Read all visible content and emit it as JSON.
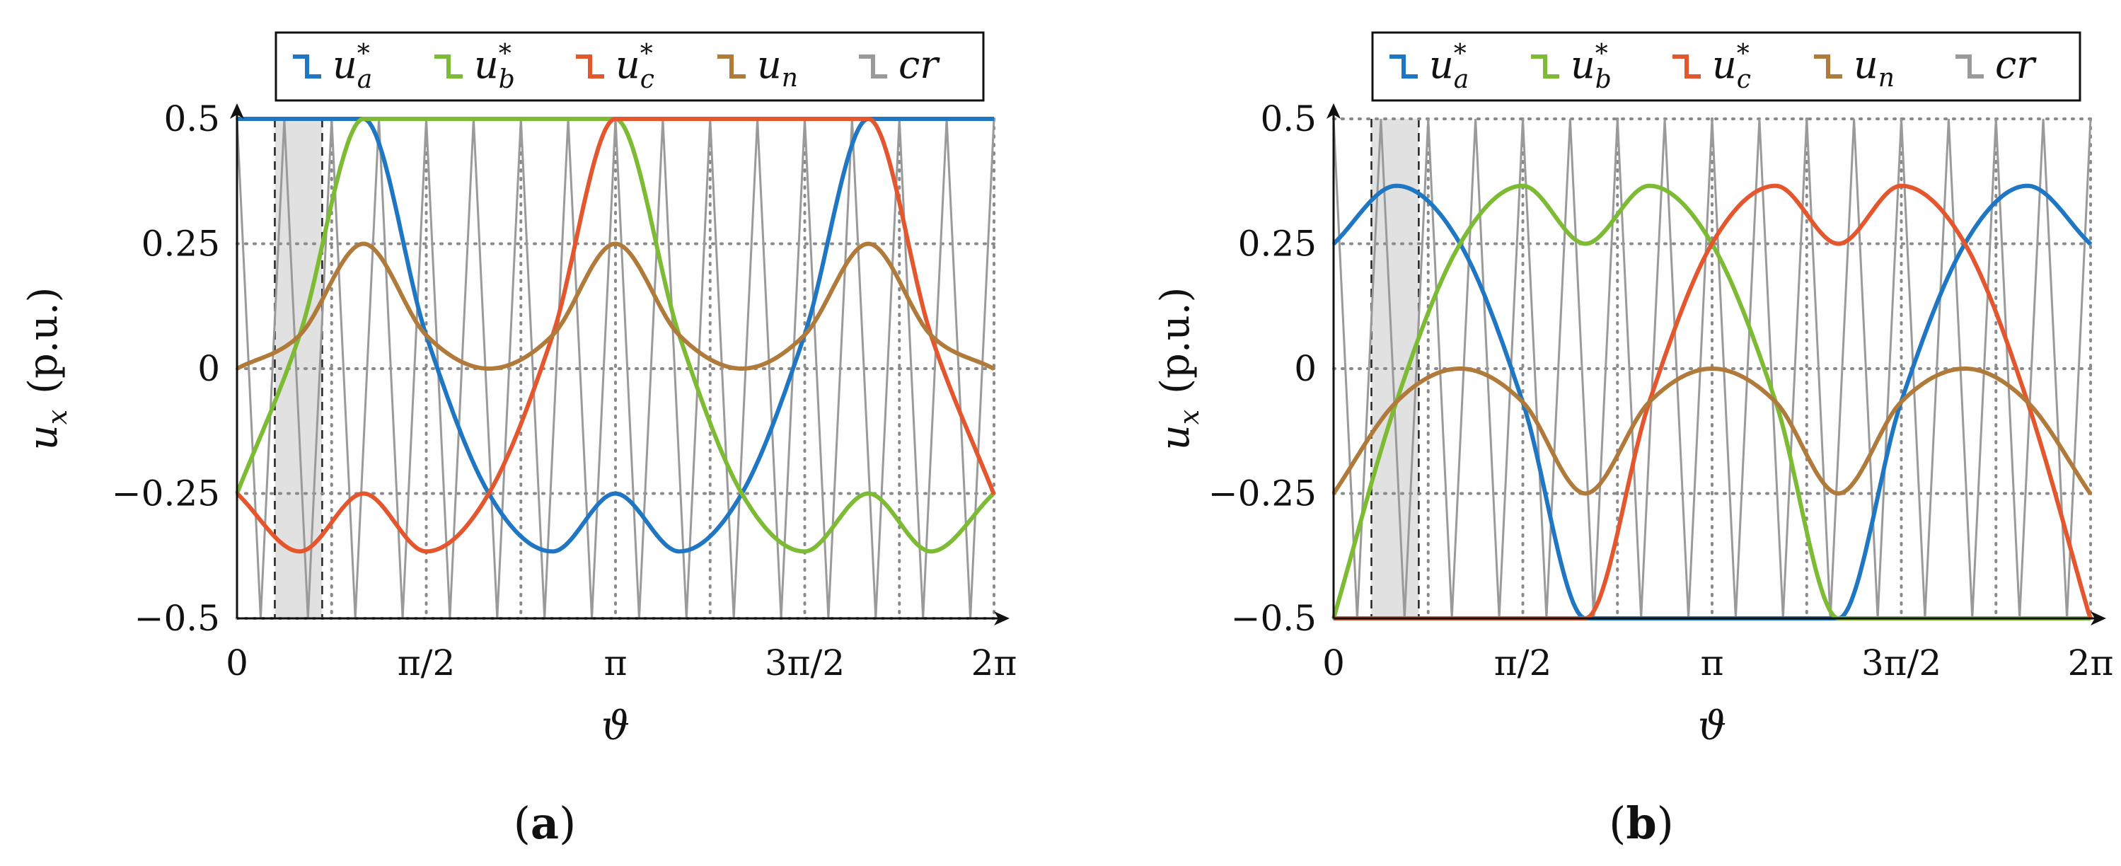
{
  "figure": {
    "legend": [
      {
        "name": "u_a*",
        "base": "u",
        "sub": "a",
        "sup": "*",
        "color": "#1f77c4"
      },
      {
        "name": "u_b*",
        "base": "u",
        "sub": "b",
        "sup": "*",
        "color": "#7dbb35"
      },
      {
        "name": "u_c*",
        "base": "u",
        "sub": "c",
        "sup": "*",
        "color": "#e4572e"
      },
      {
        "name": "u_n",
        "base": "u",
        "sub": "n",
        "sup": "",
        "color": "#b07a3b"
      },
      {
        "name": "cr",
        "base": "cr",
        "sub": "",
        "sup": "",
        "color": "#9a9a9a"
      }
    ],
    "ylabel": {
      "sym": "u",
      "sub": "x",
      "unit": "(p.u.)"
    },
    "xlabel": "ϑ",
    "y_ticks": [
      "0.5",
      "0.25",
      "0",
      "−0.25",
      "−0.5"
    ],
    "x_ticks": [
      "0",
      "π/2",
      "π",
      "3π/2",
      "2π"
    ],
    "captions": {
      "a": "a",
      "b": "b"
    }
  },
  "chart_data": [
    {
      "id": "a",
      "type": "line",
      "title": "(a)",
      "xlabel": "ϑ",
      "ylabel": "u_x (p.u.)",
      "xlim": [
        0,
        6.2832
      ],
      "ylim": [
        -0.5,
        0.5
      ],
      "x_tick_values": [
        0,
        1.5708,
        3.1416,
        4.7124,
        6.2832
      ],
      "y_tick_values": [
        -0.5,
        -0.25,
        0,
        0.25,
        0.5
      ],
      "grid": true,
      "carrier_periods": 16,
      "shaded_x": [
        0.314,
        0.707
      ],
      "legend_position": "top",
      "series": [
        {
          "name": "u_a*",
          "x": [
            0,
            0.52,
            1.05,
            1.57,
            2.09,
            2.62,
            3.14,
            3.67,
            4.19,
            4.71,
            5.24,
            5.76,
            6.28
          ],
          "values": [
            0.5,
            0.5,
            0.5,
            0.067,
            -0.25,
            -0.366,
            -0.25,
            -0.366,
            -0.25,
            0.067,
            0.5,
            0.5,
            0.5
          ]
        },
        {
          "name": "u_b*",
          "x": [
            0,
            0.52,
            1.05,
            1.57,
            2.09,
            2.62,
            3.14,
            3.67,
            4.19,
            4.71,
            5.24,
            5.76,
            6.28
          ],
          "values": [
            -0.25,
            0.067,
            0.5,
            0.5,
            0.5,
            0.5,
            0.5,
            0.067,
            -0.25,
            -0.366,
            -0.25,
            -0.366,
            -0.25
          ]
        },
        {
          "name": "u_c*",
          "x": [
            0,
            0.52,
            1.05,
            1.57,
            2.09,
            2.62,
            3.14,
            3.67,
            4.19,
            4.71,
            5.24,
            5.76,
            6.28
          ],
          "values": [
            -0.25,
            -0.366,
            -0.25,
            -0.366,
            -0.25,
            0.067,
            0.5,
            0.5,
            0.5,
            0.5,
            0.5,
            0.067,
            -0.25
          ]
        },
        {
          "name": "u_n",
          "x": [
            0,
            0.52,
            1.05,
            1.57,
            2.09,
            2.62,
            3.14,
            3.67,
            4.19,
            4.71,
            5.24,
            5.76,
            6.28
          ],
          "values": [
            0,
            0.067,
            0.25,
            0.067,
            0,
            0.067,
            0.25,
            0.067,
            0,
            0.067,
            0.25,
            0.067,
            0
          ]
        }
      ]
    },
    {
      "id": "b",
      "type": "line",
      "title": "(b)",
      "xlabel": "ϑ",
      "ylabel": "u_x (p.u.)",
      "xlim": [
        0,
        6.2832
      ],
      "ylim": [
        -0.5,
        0.5
      ],
      "x_tick_values": [
        0,
        1.5708,
        3.1416,
        4.7124,
        6.2832
      ],
      "y_tick_values": [
        -0.5,
        -0.25,
        0,
        0.25,
        0.5
      ],
      "grid": true,
      "carrier_periods": 16,
      "shaded_x": [
        0.314,
        0.707
      ],
      "legend_position": "top",
      "series": [
        {
          "name": "u_a*",
          "x": [
            0,
            0.52,
            1.05,
            1.57,
            2.09,
            2.62,
            3.14,
            3.67,
            4.19,
            4.71,
            5.24,
            5.76,
            6.28
          ],
          "values": [
            0.25,
            0.366,
            0.25,
            -0.067,
            -0.5,
            -0.5,
            -0.5,
            -0.5,
            -0.5,
            -0.067,
            0.25,
            0.366,
            0.25
          ]
        },
        {
          "name": "u_b*",
          "x": [
            0,
            0.52,
            1.05,
            1.57,
            2.09,
            2.62,
            3.14,
            3.67,
            4.19,
            4.71,
            5.24,
            5.76,
            6.28
          ],
          "values": [
            -0.5,
            -0.067,
            0.25,
            0.366,
            0.25,
            0.366,
            0.25,
            -0.067,
            -0.5,
            -0.5,
            -0.5,
            -0.5,
            -0.5
          ]
        },
        {
          "name": "u_c*",
          "x": [
            0,
            0.52,
            1.05,
            1.57,
            2.09,
            2.62,
            3.14,
            3.67,
            4.19,
            4.71,
            5.24,
            5.76,
            6.28
          ],
          "values": [
            -0.5,
            -0.5,
            -0.5,
            -0.5,
            -0.5,
            -0.067,
            0.25,
            0.366,
            0.25,
            0.366,
            0.25,
            -0.067,
            -0.5
          ]
        },
        {
          "name": "u_n",
          "x": [
            0,
            0.52,
            1.05,
            1.57,
            2.09,
            2.62,
            3.14,
            3.67,
            4.19,
            4.71,
            5.24,
            5.76,
            6.28
          ],
          "values": [
            -0.25,
            -0.067,
            0,
            -0.067,
            -0.25,
            -0.067,
            0,
            -0.067,
            -0.25,
            -0.067,
            0,
            -0.067,
            -0.25
          ]
        }
      ]
    }
  ]
}
